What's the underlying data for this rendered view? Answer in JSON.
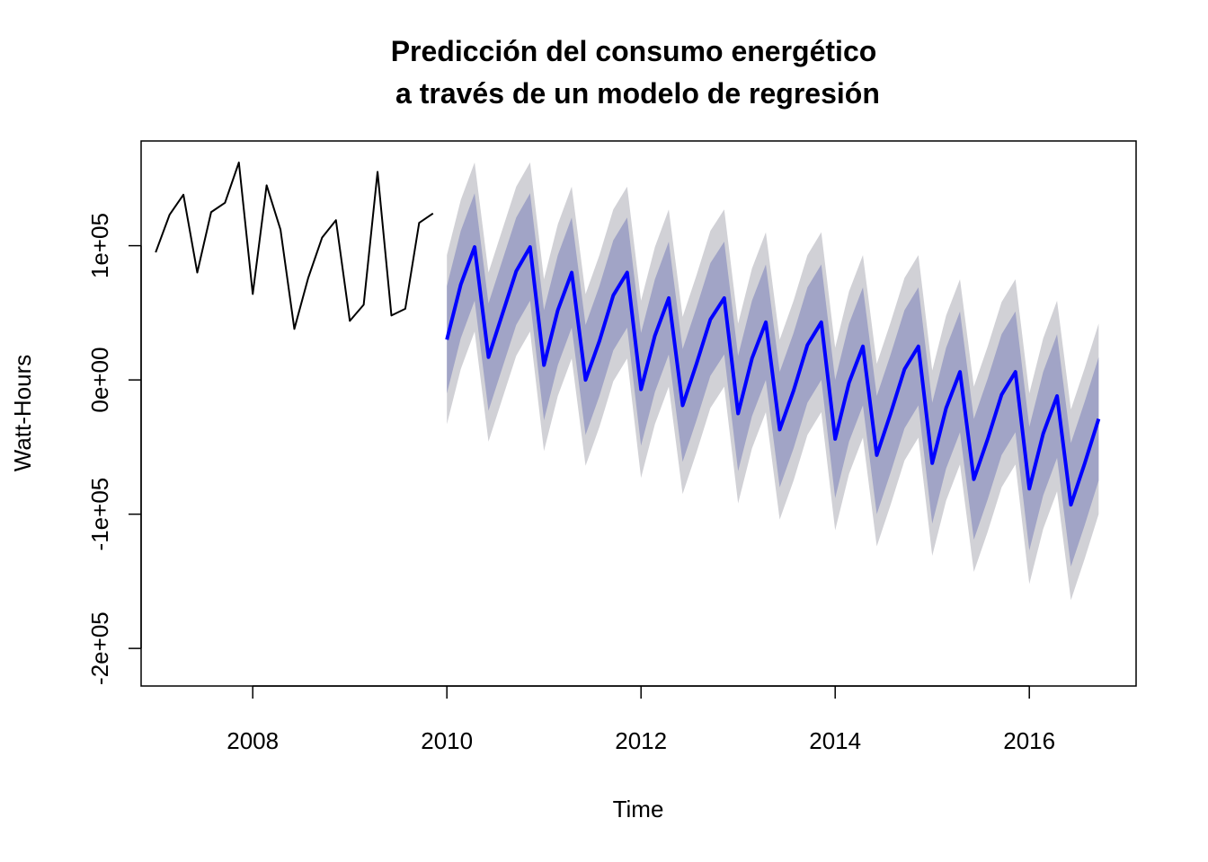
{
  "chart_data": {
    "type": "line",
    "title_line1": "Predicción del consumo energético",
    "title_line2": " a través de un modelo de regresión",
    "xlabel": "Time",
    "ylabel": "Watt-Hours",
    "xlim": [
      2006.85,
      2017.1
    ],
    "ylim": [
      -228000,
      178000
    ],
    "x_ticks": [
      2008,
      2010,
      2012,
      2014,
      2016
    ],
    "x_tick_labels": [
      "2008",
      "2010",
      "2012",
      "2014",
      "2016"
    ],
    "y_ticks": [
      -200000,
      -100000,
      0,
      100000
    ],
    "y_tick_labels": [
      "-2e+05",
      "-1e+05",
      "0e+00",
      "1e+05"
    ],
    "grid": false,
    "colors": {
      "history": "#000000",
      "forecast": "#0000ff",
      "band_95": "#d1d1d6",
      "band_80": "#a1a4c6"
    },
    "series": [
      {
        "kind": "history",
        "x": [
          2007.0,
          2007.1429,
          2007.2857,
          2007.4286,
          2007.5714,
          2007.7143,
          2007.8571,
          2008.0,
          2008.1429,
          2008.2857,
          2008.4286,
          2008.5714,
          2008.7143,
          2008.8571,
          2009.0,
          2009.1429,
          2009.2857,
          2009.4286,
          2009.5714,
          2009.7143,
          2009.8571
        ],
        "values": [
          95000,
          123000,
          138000,
          80000,
          125000,
          132000,
          162000,
          64000,
          145000,
          112000,
          38000,
          76000,
          106000,
          119000,
          44000,
          56000,
          155000,
          48000,
          53000,
          117000,
          124000
        ]
      },
      {
        "kind": "forecast",
        "x": [
          2010.0,
          2010.1429,
          2010.2857,
          2010.4286,
          2010.5714,
          2010.7143,
          2010.8571,
          2011.0,
          2011.1429,
          2011.2857,
          2011.4286,
          2011.5714,
          2011.7143,
          2011.8571,
          2012.0,
          2012.1429,
          2012.2857,
          2012.4286,
          2012.5714,
          2012.7143,
          2012.8571,
          2013.0,
          2013.1429,
          2013.2857,
          2013.4286,
          2013.5714,
          2013.7143,
          2013.8571,
          2014.0,
          2014.1429,
          2014.2857,
          2014.4286,
          2014.5714,
          2014.7143,
          2014.8571,
          2015.0,
          2015.1429,
          2015.2857,
          2015.4286,
          2015.5714,
          2015.7143,
          2015.8571,
          2016.0,
          2016.1429,
          2016.2857,
          2016.4286,
          2016.5714,
          2016.7143
        ],
        "values": [
          30000,
          71000,
          99000,
          17000,
          49000,
          81000,
          99000,
          11000,
          52000,
          80000,
          0,
          29000,
          63000,
          80000,
          -7000,
          33000,
          61000,
          -19000,
          12000,
          45000,
          61000,
          -25000,
          16000,
          43000,
          -37000,
          -8000,
          26000,
          43000,
          -44000,
          -2000,
          25000,
          -56000,
          -25000,
          8000,
          25000,
          -62000,
          -21000,
          6000,
          -74000,
          -44000,
          -11000,
          6000,
          -81000,
          -40000,
          -12000,
          -93000,
          -62000,
          -29000
        ],
        "lo80": [
          -10000,
          31000,
          59000,
          -23000,
          9000,
          41000,
          59000,
          -30000,
          11000,
          39000,
          -41000,
          -12000,
          22000,
          39000,
          -49000,
          -9000,
          19000,
          -61000,
          -30000,
          3000,
          19000,
          -68000,
          -27000,
          0,
          -80000,
          -51000,
          -17000,
          0,
          -88000,
          -46000,
          -19000,
          -100000,
          -69000,
          -36000,
          -19000,
          -107000,
          -66000,
          -39000,
          -119000,
          -89000,
          -56000,
          -39000,
          -127000,
          -86000,
          -58000,
          -139000,
          -108000,
          -75000
        ],
        "hi80": [
          70000,
          111000,
          139000,
          57000,
          89000,
          121000,
          139000,
          52000,
          93000,
          121000,
          41000,
          70000,
          104000,
          121000,
          35000,
          75000,
          103000,
          23000,
          54000,
          87000,
          103000,
          18000,
          59000,
          86000,
          6000,
          35000,
          69000,
          86000,
          0,
          42000,
          69000,
          -12000,
          19000,
          52000,
          69000,
          -17000,
          24000,
          51000,
          -29000,
          1000,
          34000,
          51000,
          -35000,
          6000,
          34000,
          -47000,
          -16000,
          17000
        ],
        "lo95": [
          -33000,
          8000,
          36000,
          -46000,
          -14000,
          18000,
          36000,
          -53000,
          -12000,
          16000,
          -64000,
          -35000,
          -1000,
          16000,
          -73000,
          -33000,
          -5000,
          -85000,
          -54000,
          -21000,
          -5000,
          -92000,
          -51000,
          -24000,
          -104000,
          -75000,
          -41000,
          -24000,
          -112000,
          -70000,
          -43000,
          -124000,
          -93000,
          -60000,
          -43000,
          -131000,
          -90000,
          -63000,
          -143000,
          -113000,
          -80000,
          -63000,
          -152000,
          -111000,
          -83000,
          -164000,
          -133000,
          -100000
        ],
        "hi95": [
          93000,
          134000,
          162000,
          80000,
          112000,
          144000,
          162000,
          75000,
          116000,
          144000,
          64000,
          93000,
          127000,
          144000,
          59000,
          99000,
          127000,
          47000,
          78000,
          111000,
          127000,
          42000,
          83000,
          110000,
          30000,
          59000,
          93000,
          110000,
          24000,
          66000,
          93000,
          12000,
          43000,
          76000,
          93000,
          7000,
          48000,
          75000,
          -5000,
          25000,
          58000,
          75000,
          -10000,
          31000,
          59000,
          -22000,
          9000,
          42000
        ]
      }
    ]
  }
}
